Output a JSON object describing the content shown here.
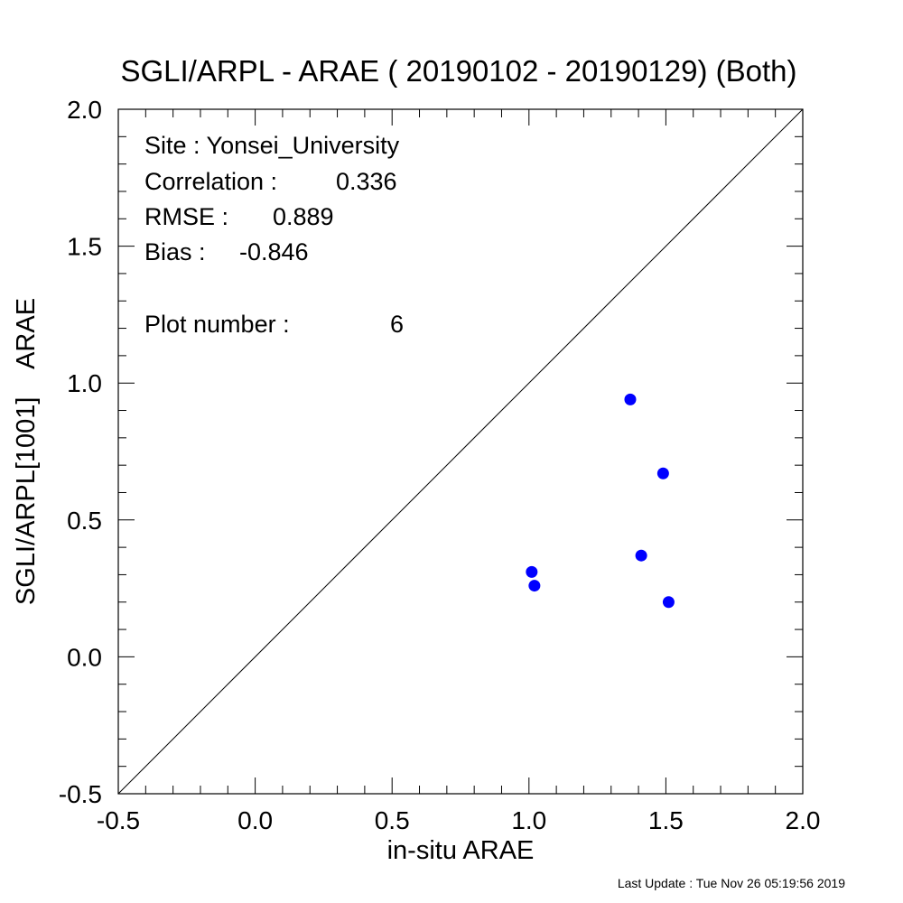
{
  "chart_data": {
    "type": "scatter",
    "title": "SGLI/ARPL - ARAE ( 20190102 - 20190129) (Both)",
    "xlabel": "in-situ ARAE",
    "ylabel": "SGLI/ARPL[1001]    ARAE",
    "xlim": [
      -0.5,
      2.0
    ],
    "ylim": [
      -0.5,
      2.0
    ],
    "x_ticks": [
      "-0.5",
      "0.0",
      "0.5",
      "1.0",
      "1.5",
      "2.0"
    ],
    "y_ticks": [
      "-0.5",
      "0.0",
      "0.5",
      "1.0",
      "1.5",
      "2.0"
    ],
    "grid": false,
    "reference_line": "1:1",
    "point_color": "#0000ff",
    "line_color": "#000000",
    "points": [
      {
        "x": 1.37,
        "y": 0.94
      },
      {
        "x": 1.49,
        "y": 0.67
      },
      {
        "x": 1.41,
        "y": 0.37
      },
      {
        "x": 1.01,
        "y": 0.31
      },
      {
        "x": 1.02,
        "y": 0.26
      },
      {
        "x": 1.51,
        "y": 0.2
      }
    ],
    "annotations": {
      "site_label": "Site : Yonsei_University",
      "correlation_label": "Correlation :",
      "correlation_value": "0.336",
      "rmse_label": "RMSE :",
      "rmse_value": "0.889",
      "bias_label": "Bias :",
      "bias_value": "-0.846",
      "plot_number_label": "Plot number :",
      "plot_number_value": "6"
    }
  },
  "footer": {
    "last_update": "Last Update : Tue Nov 26 05:19:56 2019"
  }
}
